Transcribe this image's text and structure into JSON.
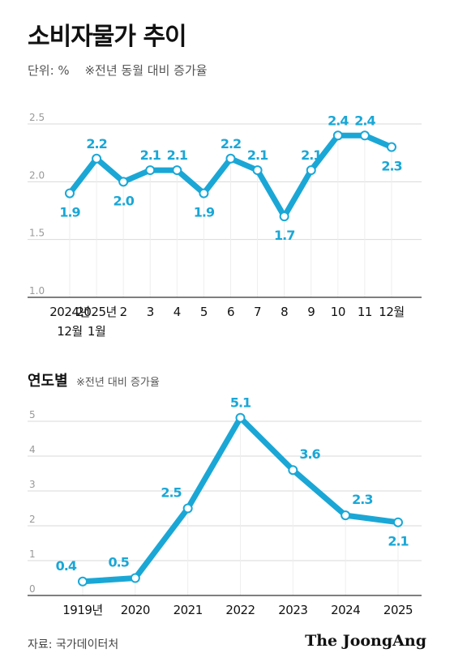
{
  "header": {
    "title": "소비자물가 추이",
    "unit": "단위: %",
    "note": "※전년 동월 대비 증가율"
  },
  "section2": {
    "title": "연도별",
    "note": "※전년 대비 증가율"
  },
  "footer": {
    "source": "자료: 국가데이터처",
    "brand": "The JoongAng"
  },
  "colors": {
    "line": "#1aa7d6",
    "label": "#1aa7d6",
    "grid": "#d9d9d9",
    "axis_text": "#999999"
  },
  "chart_data": [
    {
      "type": "line",
      "categories": [
        "2024년 12월",
        "2025년 1월",
        "2",
        "3",
        "4",
        "5",
        "6",
        "7",
        "8",
        "9",
        "10",
        "11",
        "12월"
      ],
      "category_lines": [
        [
          "2024년",
          "12월"
        ],
        [
          "2025년",
          "1월"
        ],
        [
          "2"
        ],
        [
          "3"
        ],
        [
          "4"
        ],
        [
          "5"
        ],
        [
          "6"
        ],
        [
          "7"
        ],
        [
          "8"
        ],
        [
          "9"
        ],
        [
          "10"
        ],
        [
          "11"
        ],
        [
          "12월"
        ]
      ],
      "values": [
        1.9,
        2.2,
        2.0,
        2.1,
        2.1,
        1.9,
        2.2,
        2.1,
        1.7,
        2.1,
        2.4,
        2.4,
        2.3
      ],
      "value_labels": [
        "1.9",
        "2.2",
        "2.0",
        "2.1",
        "2.1",
        "1.9",
        "2.2",
        "2.1",
        "1.7",
        "2.1",
        "2.4",
        "2.4",
        "2.3"
      ],
      "label_positions": [
        "below",
        "above",
        "below",
        "above",
        "above",
        "below",
        "above",
        "above",
        "below",
        "above",
        "above",
        "above",
        "below"
      ],
      "yticks": [
        "1.0",
        "1.5",
        "2.0",
        "2.5"
      ],
      "ylim": [
        1.0,
        2.5
      ],
      "grid": true
    },
    {
      "type": "line",
      "categories": [
        "1919년",
        "2020",
        "2021",
        "2022",
        "2023",
        "2024",
        "2025"
      ],
      "values": [
        0.4,
        0.5,
        2.5,
        5.1,
        3.6,
        2.3,
        2.1
      ],
      "value_labels": [
        "0.4",
        "0.5",
        "2.5",
        "5.1",
        "3.6",
        "2.3",
        "2.1"
      ],
      "label_positions": [
        "left-above",
        "left-above",
        "left-above",
        "above",
        "right-above",
        "right-above",
        "below"
      ],
      "yticks": [
        "0",
        "1",
        "2",
        "3",
        "4",
        "5"
      ],
      "ylim": [
        0,
        5
      ],
      "grid": true
    }
  ]
}
